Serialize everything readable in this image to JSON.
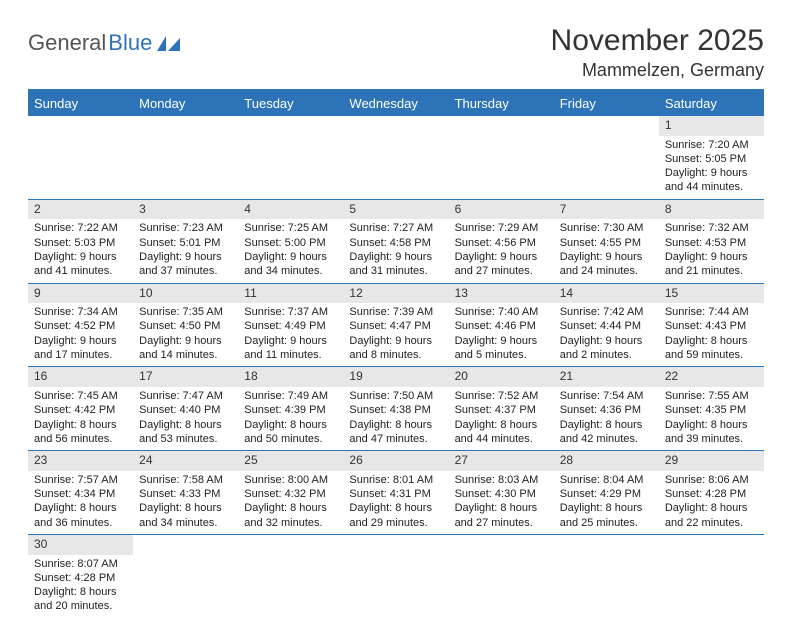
{
  "brand": {
    "part1": "General",
    "part2": "Blue"
  },
  "title": "November 2025",
  "location": "Mammelzen, Germany",
  "colors": {
    "accent": "#2d73b8",
    "header_text": "#ffffff",
    "daynum_bg": "#e7e7e7",
    "text": "#222222",
    "background": "#ffffff"
  },
  "daysOfWeek": [
    "Sunday",
    "Monday",
    "Tuesday",
    "Wednesday",
    "Thursday",
    "Friday",
    "Saturday"
  ],
  "weeks": [
    [
      {
        "n": "",
        "l1": "",
        "l2": "",
        "l3": "",
        "l4": "",
        "empty": true
      },
      {
        "n": "",
        "l1": "",
        "l2": "",
        "l3": "",
        "l4": "",
        "empty": true
      },
      {
        "n": "",
        "l1": "",
        "l2": "",
        "l3": "",
        "l4": "",
        "empty": true
      },
      {
        "n": "",
        "l1": "",
        "l2": "",
        "l3": "",
        "l4": "",
        "empty": true
      },
      {
        "n": "",
        "l1": "",
        "l2": "",
        "l3": "",
        "l4": "",
        "empty": true
      },
      {
        "n": "",
        "l1": "",
        "l2": "",
        "l3": "",
        "l4": "",
        "empty": true
      },
      {
        "n": "1",
        "l1": "Sunrise: 7:20 AM",
        "l2": "Sunset: 5:05 PM",
        "l3": "Daylight: 9 hours",
        "l4": "and 44 minutes."
      }
    ],
    [
      {
        "n": "2",
        "l1": "Sunrise: 7:22 AM",
        "l2": "Sunset: 5:03 PM",
        "l3": "Daylight: 9 hours",
        "l4": "and 41 minutes."
      },
      {
        "n": "3",
        "l1": "Sunrise: 7:23 AM",
        "l2": "Sunset: 5:01 PM",
        "l3": "Daylight: 9 hours",
        "l4": "and 37 minutes."
      },
      {
        "n": "4",
        "l1": "Sunrise: 7:25 AM",
        "l2": "Sunset: 5:00 PM",
        "l3": "Daylight: 9 hours",
        "l4": "and 34 minutes."
      },
      {
        "n": "5",
        "l1": "Sunrise: 7:27 AM",
        "l2": "Sunset: 4:58 PM",
        "l3": "Daylight: 9 hours",
        "l4": "and 31 minutes."
      },
      {
        "n": "6",
        "l1": "Sunrise: 7:29 AM",
        "l2": "Sunset: 4:56 PM",
        "l3": "Daylight: 9 hours",
        "l4": "and 27 minutes."
      },
      {
        "n": "7",
        "l1": "Sunrise: 7:30 AM",
        "l2": "Sunset: 4:55 PM",
        "l3": "Daylight: 9 hours",
        "l4": "and 24 minutes."
      },
      {
        "n": "8",
        "l1": "Sunrise: 7:32 AM",
        "l2": "Sunset: 4:53 PM",
        "l3": "Daylight: 9 hours",
        "l4": "and 21 minutes."
      }
    ],
    [
      {
        "n": "9",
        "l1": "Sunrise: 7:34 AM",
        "l2": "Sunset: 4:52 PM",
        "l3": "Daylight: 9 hours",
        "l4": "and 17 minutes."
      },
      {
        "n": "10",
        "l1": "Sunrise: 7:35 AM",
        "l2": "Sunset: 4:50 PM",
        "l3": "Daylight: 9 hours",
        "l4": "and 14 minutes."
      },
      {
        "n": "11",
        "l1": "Sunrise: 7:37 AM",
        "l2": "Sunset: 4:49 PM",
        "l3": "Daylight: 9 hours",
        "l4": "and 11 minutes."
      },
      {
        "n": "12",
        "l1": "Sunrise: 7:39 AM",
        "l2": "Sunset: 4:47 PM",
        "l3": "Daylight: 9 hours",
        "l4": "and 8 minutes."
      },
      {
        "n": "13",
        "l1": "Sunrise: 7:40 AM",
        "l2": "Sunset: 4:46 PM",
        "l3": "Daylight: 9 hours",
        "l4": "and 5 minutes."
      },
      {
        "n": "14",
        "l1": "Sunrise: 7:42 AM",
        "l2": "Sunset: 4:44 PM",
        "l3": "Daylight: 9 hours",
        "l4": "and 2 minutes."
      },
      {
        "n": "15",
        "l1": "Sunrise: 7:44 AM",
        "l2": "Sunset: 4:43 PM",
        "l3": "Daylight: 8 hours",
        "l4": "and 59 minutes."
      }
    ],
    [
      {
        "n": "16",
        "l1": "Sunrise: 7:45 AM",
        "l2": "Sunset: 4:42 PM",
        "l3": "Daylight: 8 hours",
        "l4": "and 56 minutes."
      },
      {
        "n": "17",
        "l1": "Sunrise: 7:47 AM",
        "l2": "Sunset: 4:40 PM",
        "l3": "Daylight: 8 hours",
        "l4": "and 53 minutes."
      },
      {
        "n": "18",
        "l1": "Sunrise: 7:49 AM",
        "l2": "Sunset: 4:39 PM",
        "l3": "Daylight: 8 hours",
        "l4": "and 50 minutes."
      },
      {
        "n": "19",
        "l1": "Sunrise: 7:50 AM",
        "l2": "Sunset: 4:38 PM",
        "l3": "Daylight: 8 hours",
        "l4": "and 47 minutes."
      },
      {
        "n": "20",
        "l1": "Sunrise: 7:52 AM",
        "l2": "Sunset: 4:37 PM",
        "l3": "Daylight: 8 hours",
        "l4": "and 44 minutes."
      },
      {
        "n": "21",
        "l1": "Sunrise: 7:54 AM",
        "l2": "Sunset: 4:36 PM",
        "l3": "Daylight: 8 hours",
        "l4": "and 42 minutes."
      },
      {
        "n": "22",
        "l1": "Sunrise: 7:55 AM",
        "l2": "Sunset: 4:35 PM",
        "l3": "Daylight: 8 hours",
        "l4": "and 39 minutes."
      }
    ],
    [
      {
        "n": "23",
        "l1": "Sunrise: 7:57 AM",
        "l2": "Sunset: 4:34 PM",
        "l3": "Daylight: 8 hours",
        "l4": "and 36 minutes."
      },
      {
        "n": "24",
        "l1": "Sunrise: 7:58 AM",
        "l2": "Sunset: 4:33 PM",
        "l3": "Daylight: 8 hours",
        "l4": "and 34 minutes."
      },
      {
        "n": "25",
        "l1": "Sunrise: 8:00 AM",
        "l2": "Sunset: 4:32 PM",
        "l3": "Daylight: 8 hours",
        "l4": "and 32 minutes."
      },
      {
        "n": "26",
        "l1": "Sunrise: 8:01 AM",
        "l2": "Sunset: 4:31 PM",
        "l3": "Daylight: 8 hours",
        "l4": "and 29 minutes."
      },
      {
        "n": "27",
        "l1": "Sunrise: 8:03 AM",
        "l2": "Sunset: 4:30 PM",
        "l3": "Daylight: 8 hours",
        "l4": "and 27 minutes."
      },
      {
        "n": "28",
        "l1": "Sunrise: 8:04 AM",
        "l2": "Sunset: 4:29 PM",
        "l3": "Daylight: 8 hours",
        "l4": "and 25 minutes."
      },
      {
        "n": "29",
        "l1": "Sunrise: 8:06 AM",
        "l2": "Sunset: 4:28 PM",
        "l3": "Daylight: 8 hours",
        "l4": "and 22 minutes."
      }
    ],
    [
      {
        "n": "30",
        "l1": "Sunrise: 8:07 AM",
        "l2": "Sunset: 4:28 PM",
        "l3": "Daylight: 8 hours",
        "l4": "and 20 minutes."
      },
      {
        "n": "",
        "l1": "",
        "l2": "",
        "l3": "",
        "l4": "",
        "empty": true
      },
      {
        "n": "",
        "l1": "",
        "l2": "",
        "l3": "",
        "l4": "",
        "empty": true
      },
      {
        "n": "",
        "l1": "",
        "l2": "",
        "l3": "",
        "l4": "",
        "empty": true
      },
      {
        "n": "",
        "l1": "",
        "l2": "",
        "l3": "",
        "l4": "",
        "empty": true
      },
      {
        "n": "",
        "l1": "",
        "l2": "",
        "l3": "",
        "l4": "",
        "empty": true
      },
      {
        "n": "",
        "l1": "",
        "l2": "",
        "l3": "",
        "l4": "",
        "empty": true
      }
    ]
  ]
}
